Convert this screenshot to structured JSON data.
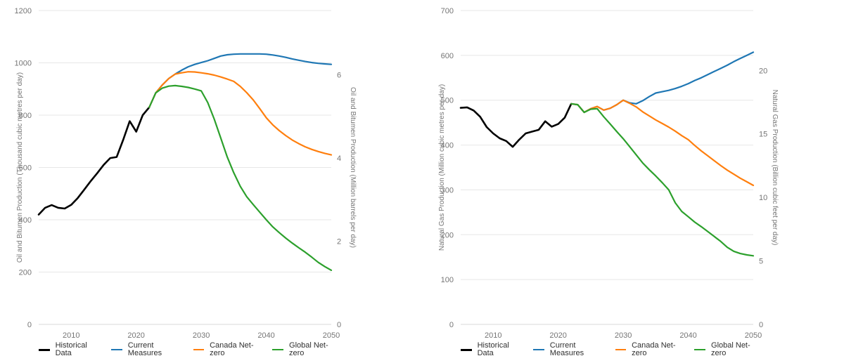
{
  "page": {
    "background": "#ffffff"
  },
  "style": {
    "grid_color": "#e7e7e7",
    "baseline_color": "#d9d9d9",
    "tick_text_color": "#757575",
    "legend_text_color": "#2f2f2f"
  },
  "series_colors": {
    "Historical Data": "#000000",
    "Current Measures": "#1f77b4",
    "Canada Net-zero": "#ff7f0e",
    "Global Net-zero": "#2ca02c"
  },
  "chart_data": [
    {
      "id": "oil-bitumen",
      "type": "line",
      "grid": true,
      "legend_position": "bottom-center",
      "x": {
        "min": 2005,
        "max": 2050,
        "ticks": [
          2010,
          2020,
          2030,
          2040,
          2050
        ]
      },
      "y_left": {
        "label": "Oil and Bitumen Production (Thousand cubic metres per day)",
        "min": 0,
        "max": 1200,
        "ticks": [
          0,
          200,
          400,
          600,
          800,
          1000,
          1200
        ]
      },
      "y_right": {
        "label": "Oil and Bitumen Production (Million barrels per day)",
        "ticks": [
          0,
          2,
          4,
          6
        ],
        "left_units_per_right_unit": 158.99
      },
      "series": [
        {
          "name": "Historical Data",
          "color": "#000000",
          "points": [
            [
              2005,
              420
            ],
            [
              2006,
              446
            ],
            [
              2007,
              456
            ],
            [
              2008,
              446
            ],
            [
              2009,
              443
            ],
            [
              2010,
              457
            ],
            [
              2011,
              483
            ],
            [
              2012,
              515
            ],
            [
              2013,
              548
            ],
            [
              2014,
              578
            ],
            [
              2015,
              610
            ],
            [
              2016,
              636
            ],
            [
              2017,
              640
            ],
            [
              2018,
              706
            ],
            [
              2019,
              777
            ],
            [
              2020,
              737
            ],
            [
              2021,
              800
            ],
            [
              2022,
              830
            ]
          ]
        },
        {
          "name": "Current Measures",
          "color": "#1f77b4",
          "points": [
            [
              2022,
              830
            ],
            [
              2023,
              885
            ],
            [
              2024,
              915
            ],
            [
              2025,
              940
            ],
            [
              2026,
              957
            ],
            [
              2027,
              972
            ],
            [
              2028,
              985
            ],
            [
              2029,
              994
            ],
            [
              2030,
              1001
            ],
            [
              2031,
              1008
            ],
            [
              2032,
              1017
            ],
            [
              2033,
              1026
            ],
            [
              2034,
              1031
            ],
            [
              2035,
              1033
            ],
            [
              2036,
              1034
            ],
            [
              2037,
              1034
            ],
            [
              2038,
              1034
            ],
            [
              2039,
              1034
            ],
            [
              2040,
              1033
            ],
            [
              2041,
              1030
            ],
            [
              2042,
              1026
            ],
            [
              2043,
              1021
            ],
            [
              2044,
              1015
            ],
            [
              2045,
              1010
            ],
            [
              2046,
              1005
            ],
            [
              2047,
              1001
            ],
            [
              2048,
              998
            ],
            [
              2049,
              996
            ],
            [
              2050,
              994
            ]
          ]
        },
        {
          "name": "Canada Net-zero",
          "color": "#ff7f0e",
          "points": [
            [
              2022,
              830
            ],
            [
              2023,
              885
            ],
            [
              2024,
              915
            ],
            [
              2025,
              940
            ],
            [
              2026,
              957
            ],
            [
              2027,
              962
            ],
            [
              2028,
              966
            ],
            [
              2029,
              965
            ],
            [
              2030,
              962
            ],
            [
              2031,
              958
            ],
            [
              2032,
              953
            ],
            [
              2033,
              946
            ],
            [
              2034,
              938
            ],
            [
              2035,
              929
            ],
            [
              2036,
              910
            ],
            [
              2037,
              886
            ],
            [
              2038,
              858
            ],
            [
              2039,
              825
            ],
            [
              2040,
              790
            ],
            [
              2041,
              763
            ],
            [
              2042,
              741
            ],
            [
              2043,
              722
            ],
            [
              2044,
              705
            ],
            [
              2045,
              691
            ],
            [
              2046,
              679
            ],
            [
              2047,
              669
            ],
            [
              2048,
              661
            ],
            [
              2049,
              654
            ],
            [
              2050,
              648
            ]
          ]
        },
        {
          "name": "Global Net-zero",
          "color": "#2ca02c",
          "points": [
            [
              2022,
              830
            ],
            [
              2023,
              885
            ],
            [
              2024,
              903
            ],
            [
              2025,
              911
            ],
            [
              2026,
              913
            ],
            [
              2027,
              910
            ],
            [
              2028,
              906
            ],
            [
              2029,
              900
            ],
            [
              2030,
              893
            ],
            [
              2031,
              848
            ],
            [
              2032,
              785
            ],
            [
              2033,
              713
            ],
            [
              2034,
              640
            ],
            [
              2035,
              580
            ],
            [
              2036,
              528
            ],
            [
              2037,
              488
            ],
            [
              2038,
              458
            ],
            [
              2039,
              429
            ],
            [
              2040,
              400
            ],
            [
              2041,
              373
            ],
            [
              2042,
              351
            ],
            [
              2043,
              330
            ],
            [
              2044,
              311
            ],
            [
              2045,
              293
            ],
            [
              2046,
              276
            ],
            [
              2047,
              257
            ],
            [
              2048,
              237
            ],
            [
              2049,
              221
            ],
            [
              2050,
              207
            ]
          ]
        }
      ]
    },
    {
      "id": "natural-gas",
      "type": "line",
      "grid": true,
      "legend_position": "bottom-center",
      "x": {
        "min": 2005,
        "max": 2050,
        "ticks": [
          2010,
          2020,
          2030,
          2040,
          2050
        ]
      },
      "y_left": {
        "label": "Natural Gas Production (Million cubic metres per day)",
        "min": 0,
        "max": 700,
        "ticks": [
          0,
          100,
          200,
          300,
          400,
          500,
          600,
          700
        ]
      },
      "y_right": {
        "label": "Natural Gas Production (Billion cubic feet per day)",
        "ticks": [
          0,
          5,
          10,
          15,
          20
        ],
        "left_units_per_right_unit": 28.32
      },
      "series": [
        {
          "name": "Historical Data",
          "color": "#000000",
          "points": [
            [
              2005,
              483
            ],
            [
              2006,
              484
            ],
            [
              2007,
              477
            ],
            [
              2008,
              463
            ],
            [
              2009,
              440
            ],
            [
              2010,
              426
            ],
            [
              2011,
              415
            ],
            [
              2012,
              409
            ],
            [
              2013,
              396
            ],
            [
              2014,
              412
            ],
            [
              2015,
              426
            ],
            [
              2016,
              430
            ],
            [
              2017,
              434
            ],
            [
              2018,
              453
            ],
            [
              2019,
              441
            ],
            [
              2020,
              447
            ],
            [
              2021,
              461
            ],
            [
              2022,
              492
            ]
          ]
        },
        {
          "name": "Current Measures",
          "color": "#1f77b4",
          "points": [
            [
              2022,
              492
            ],
            [
              2023,
              490
            ],
            [
              2024,
              473
            ],
            [
              2025,
              481
            ],
            [
              2026,
              486
            ],
            [
              2027,
              478
            ],
            [
              2028,
              482
            ],
            [
              2029,
              490
            ],
            [
              2030,
              500
            ],
            [
              2031,
              494
            ],
            [
              2032,
              492
            ],
            [
              2033,
              499
            ],
            [
              2034,
              508
            ],
            [
              2035,
              516
            ],
            [
              2036,
              519
            ],
            [
              2037,
              522
            ],
            [
              2038,
              526
            ],
            [
              2039,
              531
            ],
            [
              2040,
              537
            ],
            [
              2041,
              544
            ],
            [
              2042,
              550
            ],
            [
              2043,
              557
            ],
            [
              2044,
              564
            ],
            [
              2045,
              571
            ],
            [
              2046,
              578
            ],
            [
              2047,
              586
            ],
            [
              2048,
              593
            ],
            [
              2049,
              600
            ],
            [
              2050,
              607
            ]
          ]
        },
        {
          "name": "Canada Net-zero",
          "color": "#ff7f0e",
          "points": [
            [
              2022,
              492
            ],
            [
              2023,
              490
            ],
            [
              2024,
              473
            ],
            [
              2025,
              481
            ],
            [
              2026,
              486
            ],
            [
              2027,
              478
            ],
            [
              2028,
              482
            ],
            [
              2029,
              490
            ],
            [
              2030,
              500
            ],
            [
              2031,
              493
            ],
            [
              2032,
              485
            ],
            [
              2033,
              474
            ],
            [
              2034,
              465
            ],
            [
              2035,
              456
            ],
            [
              2036,
              448
            ],
            [
              2037,
              440
            ],
            [
              2038,
              431
            ],
            [
              2039,
              421
            ],
            [
              2040,
              412
            ],
            [
              2041,
              399
            ],
            [
              2042,
              387
            ],
            [
              2043,
              376
            ],
            [
              2044,
              365
            ],
            [
              2045,
              354
            ],
            [
              2046,
              344
            ],
            [
              2047,
              335
            ],
            [
              2048,
              326
            ],
            [
              2049,
              318
            ],
            [
              2050,
              310
            ]
          ]
        },
        {
          "name": "Global Net-zero",
          "color": "#2ca02c",
          "points": [
            [
              2022,
              492
            ],
            [
              2023,
              490
            ],
            [
              2024,
              473
            ],
            [
              2025,
              480
            ],
            [
              2026,
              481
            ],
            [
              2027,
              463
            ],
            [
              2028,
              447
            ],
            [
              2029,
              430
            ],
            [
              2030,
              414
            ],
            [
              2031,
              396
            ],
            [
              2032,
              378
            ],
            [
              2033,
              360
            ],
            [
              2034,
              345
            ],
            [
              2035,
              331
            ],
            [
              2036,
              316
            ],
            [
              2037,
              300
            ],
            [
              2038,
              271
            ],
            [
              2039,
              252
            ],
            [
              2040,
              240
            ],
            [
              2041,
              228
            ],
            [
              2042,
              218
            ],
            [
              2043,
              207
            ],
            [
              2044,
              196
            ],
            [
              2045,
              185
            ],
            [
              2046,
              172
            ],
            [
              2047,
              163
            ],
            [
              2048,
              158
            ],
            [
              2049,
              155
            ],
            [
              2050,
              153
            ]
          ]
        }
      ]
    }
  ]
}
